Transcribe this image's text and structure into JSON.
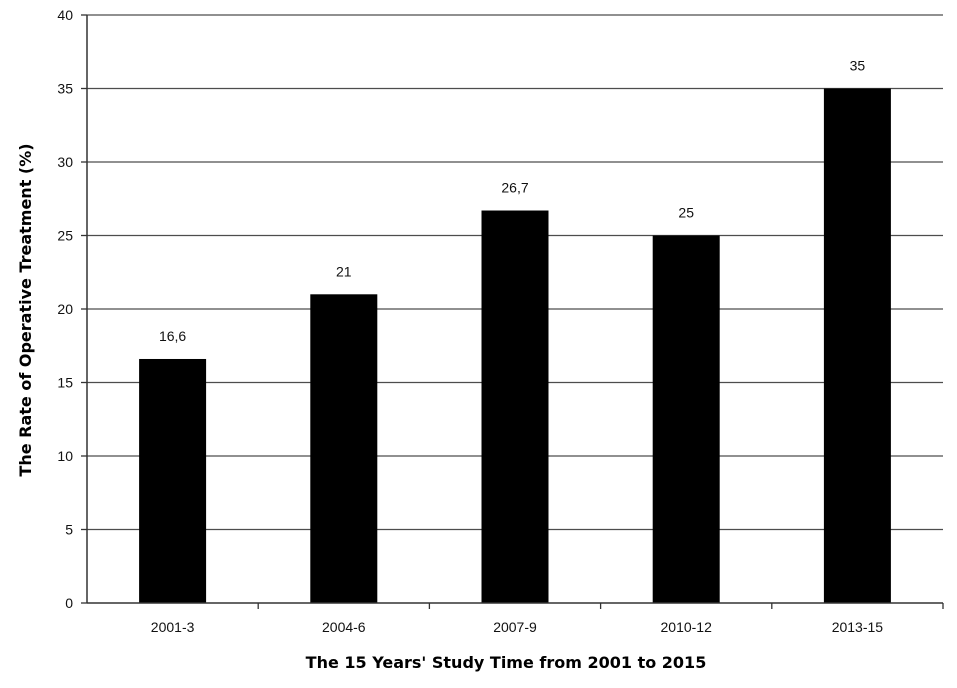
{
  "chart_data": {
    "type": "bar",
    "title": "",
    "xlabel": "The 15 Years' Study Time from 2001 to 2015",
    "ylabel": "The Rate of Operative Treatment (%)",
    "categories": [
      "2001-3",
      "2004-6",
      "2007-9",
      "2010-12",
      "2013-15"
    ],
    "values": [
      16.6,
      21,
      26.7,
      25,
      35
    ],
    "data_labels": [
      "16,6",
      "21",
      "26,7",
      "25",
      "35"
    ],
    "ylim": [
      0,
      40
    ],
    "yticks": [
      0,
      5,
      10,
      15,
      20,
      25,
      30,
      35,
      40
    ],
    "grid": true,
    "legend": "none",
    "bar_color": "#000000",
    "grid_color": "#4d4d4d"
  }
}
